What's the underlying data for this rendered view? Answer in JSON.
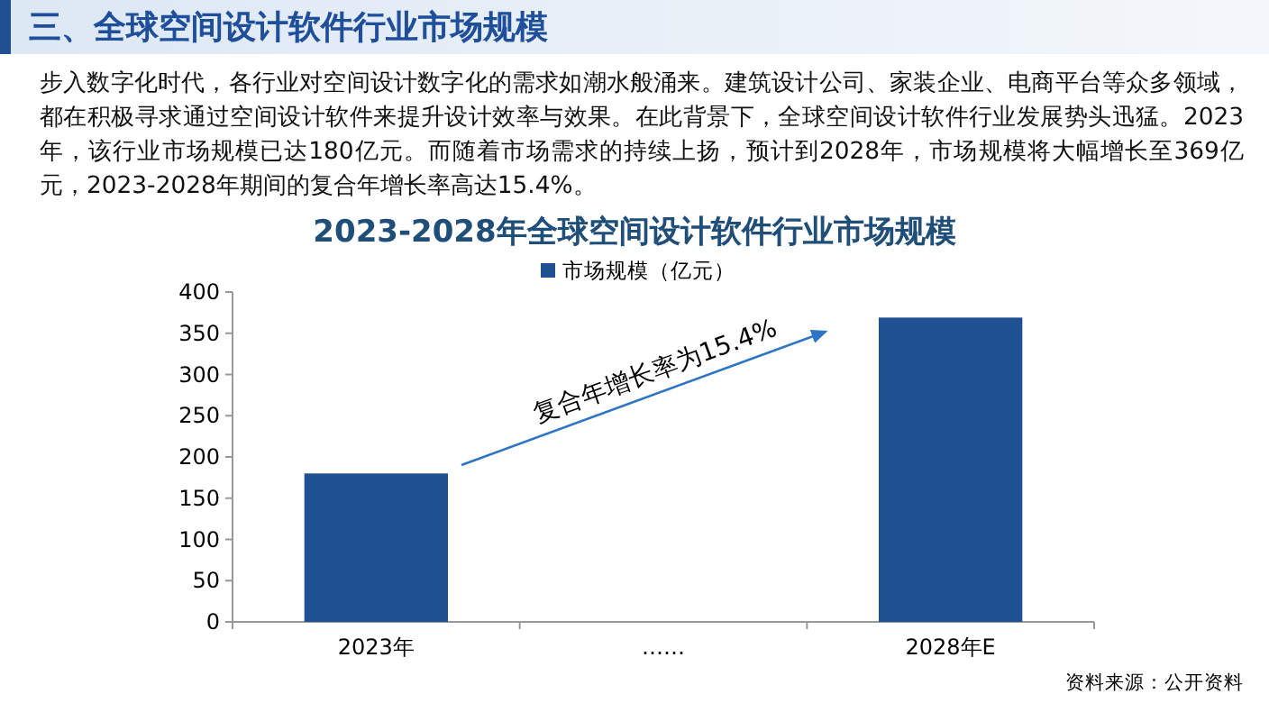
{
  "chart_data": {
    "type": "bar",
    "title": "2023-2028年全球空间设计软件行业市场规模",
    "annotations": [
      "三、全球空间设计软件行业市场规模",
      "步入数字化时代，各行业对空间设计数字化的需求如潮水般涌来。建筑设计公司、家装企业、电商平台等众多领域，都在积极寻求通过空间设计软件来提升设计效率与效果。在此背景下，全球空间设计软件行业发展势头迅猛。2023年，该行业市场规模已达180亿元。而随着市场需求的持续上扬，预计到2028年，市场规模将大幅增长至369亿元，2023-2028年期间的复合年增长率高达15.4%。",
      "复合年增长率为15.4%",
      "资料来源：公开资料"
    ],
    "categories": [
      "2023年",
      "……",
      "2028年E"
    ],
    "series": [
      {
        "name": "市场规模（亿元）",
        "color": "#1f5091",
        "values": [
          180,
          null,
          369
        ]
      }
    ],
    "ylim": [
      0,
      400
    ],
    "yticks": [
      0,
      50,
      100,
      150,
      200,
      250,
      300,
      350,
      400
    ],
    "legend": "top"
  }
}
